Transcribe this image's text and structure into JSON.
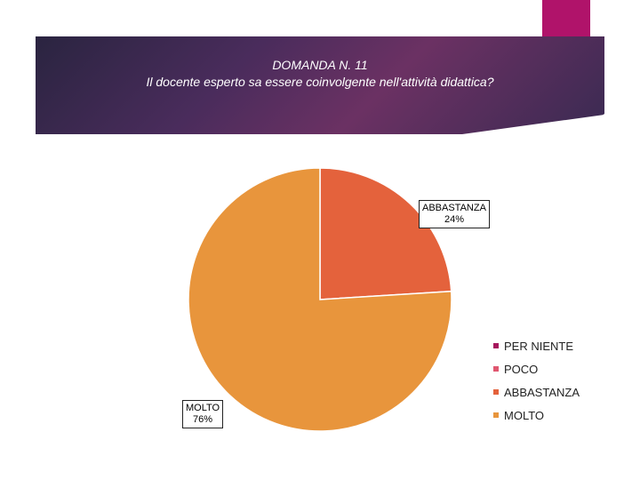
{
  "title": {
    "line1": "DOMANDA N. 11",
    "line2": "Il docente esperto sa essere coinvolgente nell'attività didattica?"
  },
  "colors": {
    "banner": "#4a2c5c",
    "accent_bar": "#b0136a",
    "slice_border": "#ffffff"
  },
  "chart_data": {
    "type": "pie",
    "categories": [
      "PER NIENTE",
      "POCO",
      "ABBASTANZA",
      "MOLTO"
    ],
    "values": [
      0,
      0,
      24,
      76
    ],
    "colors": [
      "#a6175d",
      "#e05770",
      "#e4623c",
      "#e8953c"
    ],
    "data_labels": [
      {
        "category": "ABBASTANZA",
        "value_text": "24%"
      },
      {
        "category": "MOLTO",
        "value_text": "76%"
      }
    ],
    "legend_position": "right"
  }
}
